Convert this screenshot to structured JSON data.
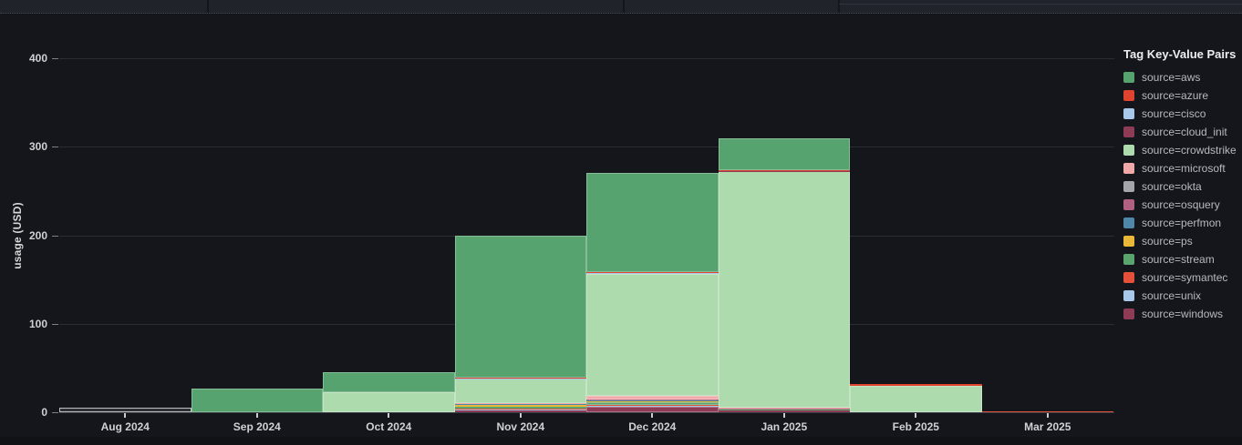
{
  "panel": {
    "legend_title": "Tag Key-Value Pairs",
    "ylabel": "usage (USD)"
  },
  "chart_data": {
    "type": "bar",
    "stacked": true,
    "title": "",
    "xlabel": "",
    "ylabel": "usage (USD)",
    "legend_title": "Tag Key-Value Pairs",
    "legend_position": "right",
    "grid": true,
    "ylim": [
      0,
      420
    ],
    "yticks": [
      0,
      100,
      200,
      300,
      400
    ],
    "categories": [
      "Aug 2024",
      "Sep 2024",
      "Oct 2024",
      "Nov 2024",
      "Dec 2024",
      "Jan 2025",
      "Feb 2025",
      "Mar 2025"
    ],
    "stack_order_bottom_to_top": [
      "source=windows",
      "source=unix",
      "source=symantec",
      "source=stream",
      "source=ps",
      "source=perfmon",
      "source=osquery",
      "source=okta",
      "source=microsoft",
      "source=crowdstrike",
      "source=cloud_init",
      "source=cisco",
      "source=azure",
      "source=aws"
    ],
    "series": [
      {
        "name": "source=aws",
        "color": "#57a36f",
        "values": [
          0,
          27,
          22,
          160,
          112,
          36,
          0,
          0
        ]
      },
      {
        "name": "source=azure",
        "color": "#e0432e",
        "values": [
          0,
          0,
          0,
          0.5,
          0.5,
          0.3,
          1.5,
          0
        ]
      },
      {
        "name": "source=cisco",
        "color": "#a7c8e8",
        "values": [
          0,
          0,
          0,
          0.3,
          0.5,
          0.2,
          0,
          0
        ]
      },
      {
        "name": "source=cloud_init",
        "color": "#8e3c55",
        "values": [
          0,
          0,
          0,
          0.4,
          0.5,
          0.2,
          0,
          0
        ]
      },
      {
        "name": "source=crowdstrike",
        "color": "#aedbae",
        "values": [
          0,
          0,
          23,
          27,
          138,
          268,
          30,
          0
        ]
      },
      {
        "name": "source=microsoft",
        "color": "#f0a8a9",
        "values": [
          0,
          0,
          0,
          0.5,
          4,
          0.3,
          0,
          0
        ]
      },
      {
        "name": "source=okta",
        "color": "#a2a5a9",
        "fill": "rgba(162,167,173,0.18)",
        "values": [
          5,
          0,
          0,
          0.4,
          0.5,
          0.2,
          0,
          0
        ]
      },
      {
        "name": "source=osquery",
        "color": "#b06080",
        "values": [
          0,
          0,
          0,
          0.5,
          1,
          0.3,
          0,
          0
        ]
      },
      {
        "name": "source=perfmon",
        "color": "#4e87a8",
        "values": [
          0,
          0,
          0,
          0.4,
          0.5,
          0.2,
          0,
          0
        ]
      },
      {
        "name": "source=ps",
        "color": "#eab839",
        "values": [
          0,
          0,
          0,
          2.5,
          1,
          0.3,
          0,
          0
        ]
      },
      {
        "name": "source=stream",
        "color": "#5aa56e",
        "values": [
          0,
          0,
          0,
          2,
          3.5,
          0.5,
          0,
          0
        ]
      },
      {
        "name": "source=symantec",
        "color": "#e4503a",
        "values": [
          0,
          0,
          0,
          1.5,
          1,
          0.3,
          0,
          0.5
        ]
      },
      {
        "name": "source=unix",
        "color": "#a7c8e8",
        "values": [
          0,
          0,
          0,
          0.5,
          0.5,
          0.2,
          0,
          0
        ]
      },
      {
        "name": "source=windows",
        "color": "#8e3c55",
        "values": [
          0,
          0,
          0,
          2.5,
          6.5,
          2.5,
          0,
          1
        ]
      }
    ]
  }
}
